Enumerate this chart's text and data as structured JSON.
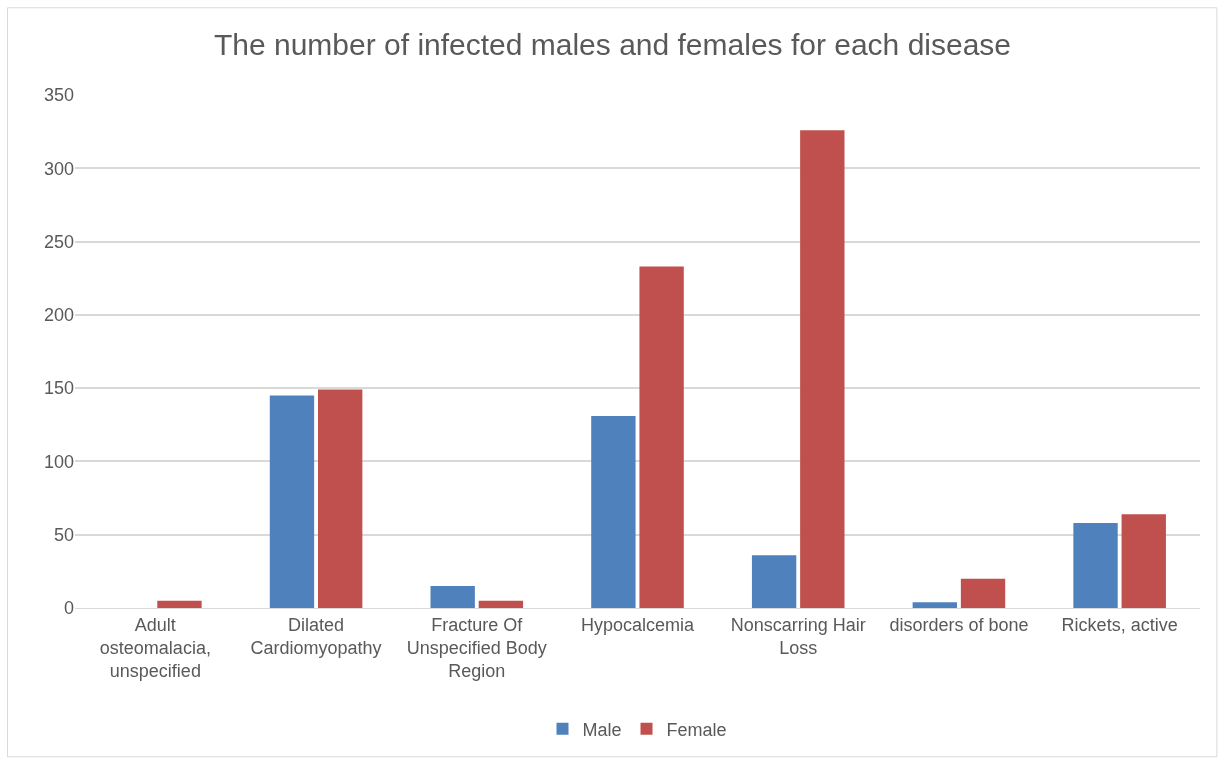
{
  "chart_data": {
    "type": "bar",
    "title": "The number of infected males and females for each disease",
    "categories": [
      "Adult osteomalacia, unspecified",
      "Dilated Cardiomyopathy",
      "Fracture Of Unspecified Body Region",
      "Hypocalcemia",
      "Nonscarring Hair Loss",
      "disorders of bone",
      "Rickets, active"
    ],
    "series": [
      {
        "name": "Male",
        "color": "#4f81bd",
        "values": [
          0,
          145,
          15,
          131,
          36,
          4,
          58
        ]
      },
      {
        "name": "Female",
        "color": "#c0504d",
        "values": [
          5,
          149,
          5,
          233,
          326,
          20,
          64
        ]
      }
    ],
    "ylim": [
      0,
      350
    ],
    "yticks": [
      0,
      50,
      100,
      150,
      200,
      250,
      300,
      350
    ],
    "grid": "y",
    "legend": "bottom"
  }
}
